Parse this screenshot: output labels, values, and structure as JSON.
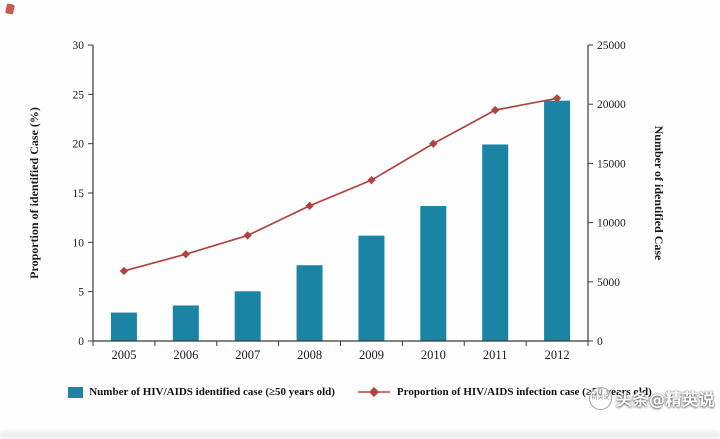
{
  "watermark": {
    "badge_text": "精英说",
    "text": "头条@精英说"
  },
  "chart_data": {
    "type": "bar+line",
    "categories": [
      "2005",
      "2006",
      "2007",
      "2008",
      "2009",
      "2010",
      "2011",
      "2012"
    ],
    "series": [
      {
        "name": "Number of HIV/AIDS identified case (≥50 years old)",
        "type": "bar",
        "axis": "right",
        "color": "#1b84a4",
        "values": [
          2400,
          3000,
          4200,
          6400,
          8900,
          11400,
          16600,
          20300
        ]
      },
      {
        "name": "Proportion of HIV/AIDS infection case (≥50 years old)",
        "type": "line",
        "axis": "left",
        "color": "#b04540",
        "values": [
          7.1,
          8.8,
          10.7,
          13.7,
          16.3,
          20.0,
          23.4,
          24.6
        ]
      }
    ],
    "left_axis": {
      "label": "Proportion of identified Case (%)",
      "min": 0,
      "max": 30,
      "step": 5
    },
    "right_axis": {
      "label": "Number of identified Case",
      "min": 0,
      "max": 25000,
      "step": 5000
    },
    "grid": false,
    "legend_position": "bottom"
  }
}
